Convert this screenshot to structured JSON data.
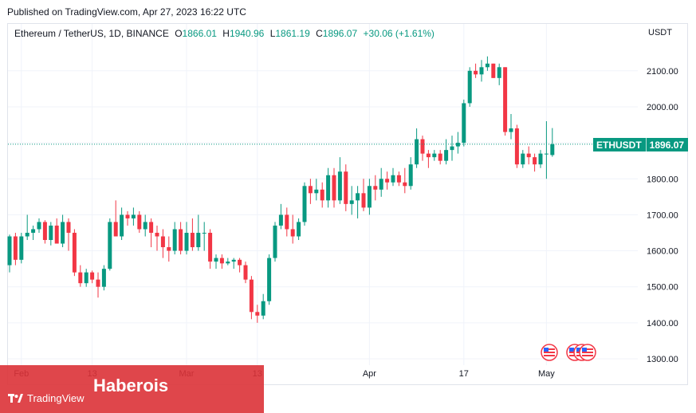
{
  "header": {
    "published": "Published on TradingView.com, Apr 27, 2023 16:22 UTC"
  },
  "legend": {
    "title": "Ethereum / TetherUS, 1D, BINANCE",
    "o_key": "O",
    "o_val": "1866.01",
    "h_key": "H",
    "h_val": "1940.96",
    "l_key": "L",
    "l_val": "1861.19",
    "c_key": "C",
    "c_val": "1896.07",
    "change": "+30.06 (+1.61%)"
  },
  "price_axis": {
    "currency": "USDT"
  },
  "last_price": {
    "symbol": "ETHUSDT",
    "value": "1896.07"
  },
  "watermark": {
    "text": "Haberois",
    "logo": "TradingView"
  },
  "colors": {
    "up": "#089981",
    "down": "#f23645",
    "grid": "#f0f3fa",
    "watermark": "#dc3237"
  },
  "icons": {
    "logo": "tradingview-logo-icon",
    "events": "us-flag-icon"
  },
  "chart_data": {
    "type": "candlestick",
    "title": "Ethereum / TetherUS, 1D, BINANCE",
    "ylim": [
      1280,
      2170
    ],
    "y_ticks": [
      1300,
      1400,
      1500,
      1600,
      1700,
      1800,
      1900,
      2000,
      2100
    ],
    "y_tick_labels": [
      "1300.00",
      "1400.00",
      "1500.00",
      "1600.00",
      "1700.00",
      "1800.00",
      "1900.00",
      "2000.00",
      "2100.00"
    ],
    "x_labels": [
      {
        "index": 2,
        "label": "Feb"
      },
      {
        "index": 14,
        "label": "13"
      },
      {
        "index": 30,
        "label": "Mar"
      },
      {
        "index": 42,
        "label": "13"
      },
      {
        "index": 61,
        "label": "Apr"
      },
      {
        "index": 77,
        "label": "17"
      },
      {
        "index": 91,
        "label": "May"
      }
    ],
    "last_close": 1896.07,
    "candles": [
      [
        1560,
        1645,
        1540,
        1640
      ],
      [
        1640,
        1650,
        1560,
        1575
      ],
      [
        1575,
        1650,
        1565,
        1640
      ],
      [
        1640,
        1700,
        1630,
        1650
      ],
      [
        1650,
        1670,
        1630,
        1660
      ],
      [
        1660,
        1690,
        1650,
        1680
      ],
      [
        1680,
        1685,
        1620,
        1630
      ],
      [
        1630,
        1680,
        1615,
        1670
      ],
      [
        1670,
        1690,
        1620,
        1620
      ],
      [
        1620,
        1700,
        1610,
        1680
      ],
      [
        1680,
        1690,
        1600,
        1650
      ],
      [
        1650,
        1660,
        1530,
        1540
      ],
      [
        1540,
        1560,
        1500,
        1510
      ],
      [
        1510,
        1550,
        1500,
        1540
      ],
      [
        1540,
        1545,
        1510,
        1520
      ],
      [
        1520,
        1540,
        1470,
        1500
      ],
      [
        1500,
        1560,
        1490,
        1550
      ],
      [
        1550,
        1690,
        1545,
        1680
      ],
      [
        1680,
        1740,
        1640,
        1640
      ],
      [
        1640,
        1720,
        1630,
        1700
      ],
      [
        1700,
        1710,
        1670,
        1690
      ],
      [
        1690,
        1720,
        1670,
        1700
      ],
      [
        1700,
        1710,
        1650,
        1660
      ],
      [
        1660,
        1700,
        1640,
        1680
      ],
      [
        1680,
        1690,
        1610,
        1650
      ],
      [
        1650,
        1670,
        1600,
        1640
      ],
      [
        1640,
        1660,
        1580,
        1610
      ],
      [
        1610,
        1640,
        1570,
        1600
      ],
      [
        1600,
        1680,
        1590,
        1660
      ],
      [
        1660,
        1680,
        1590,
        1600
      ],
      [
        1600,
        1680,
        1590,
        1650
      ],
      [
        1650,
        1690,
        1600,
        1610
      ],
      [
        1610,
        1700,
        1600,
        1650
      ],
      [
        1650,
        1680,
        1600,
        1650
      ],
      [
        1650,
        1660,
        1550,
        1570
      ],
      [
        1570,
        1590,
        1550,
        1580
      ],
      [
        1580,
        1590,
        1550,
        1565
      ],
      [
        1565,
        1580,
        1560,
        1570
      ],
      [
        1570,
        1580,
        1550,
        1575
      ],
      [
        1575,
        1580,
        1540,
        1560
      ],
      [
        1560,
        1570,
        1510,
        1520
      ],
      [
        1520,
        1530,
        1410,
        1430
      ],
      [
        1430,
        1450,
        1400,
        1420
      ],
      [
        1420,
        1480,
        1410,
        1460
      ],
      [
        1460,
        1590,
        1450,
        1580
      ],
      [
        1580,
        1680,
        1570,
        1670
      ],
      [
        1670,
        1730,
        1660,
        1700
      ],
      [
        1700,
        1720,
        1640,
        1660
      ],
      [
        1660,
        1700,
        1620,
        1640
      ],
      [
        1640,
        1690,
        1630,
        1680
      ],
      [
        1680,
        1790,
        1670,
        1780
      ],
      [
        1780,
        1800,
        1730,
        1760
      ],
      [
        1760,
        1800,
        1740,
        1770
      ],
      [
        1770,
        1790,
        1720,
        1740
      ],
      [
        1740,
        1830,
        1720,
        1810
      ],
      [
        1810,
        1830,
        1720,
        1740
      ],
      [
        1740,
        1860,
        1730,
        1820
      ],
      [
        1820,
        1840,
        1710,
        1730
      ],
      [
        1730,
        1780,
        1700,
        1740
      ],
      [
        1740,
        1780,
        1690,
        1760
      ],
      [
        1760,
        1800,
        1710,
        1720
      ],
      [
        1720,
        1800,
        1700,
        1780
      ],
      [
        1780,
        1810,
        1740,
        1770
      ],
      [
        1770,
        1830,
        1750,
        1800
      ],
      [
        1800,
        1820,
        1770,
        1790
      ],
      [
        1790,
        1830,
        1780,
        1810
      ],
      [
        1810,
        1820,
        1780,
        1790
      ],
      [
        1790,
        1830,
        1760,
        1780
      ],
      [
        1780,
        1860,
        1770,
        1840
      ],
      [
        1840,
        1940,
        1830,
        1910
      ],
      [
        1910,
        1920,
        1850,
        1870
      ],
      [
        1870,
        1880,
        1830,
        1860
      ],
      [
        1860,
        1880,
        1850,
        1870
      ],
      [
        1870,
        1880,
        1840,
        1850
      ],
      [
        1850,
        1910,
        1840,
        1880
      ],
      [
        1880,
        1920,
        1850,
        1890
      ],
      [
        1890,
        1930,
        1870,
        1900
      ],
      [
        1900,
        2020,
        1890,
        2010
      ],
      [
        2010,
        2110,
        2000,
        2100
      ],
      [
        2100,
        2120,
        2080,
        2090
      ],
      [
        2090,
        2130,
        2070,
        2110
      ],
      [
        2110,
        2140,
        2100,
        2120
      ],
      [
        2120,
        2120,
        2080,
        2080
      ],
      [
        2080,
        2120,
        2060,
        2110
      ],
      [
        2110,
        2110,
        1920,
        1930
      ],
      [
        1930,
        1980,
        1910,
        1940
      ],
      [
        1940,
        1950,
        1830,
        1840
      ],
      [
        1840,
        1880,
        1830,
        1870
      ],
      [
        1870,
        1890,
        1840,
        1860
      ],
      [
        1860,
        1870,
        1820,
        1840
      ],
      [
        1840,
        1880,
        1830,
        1870
      ],
      [
        1870,
        1960,
        1800,
        1870
      ],
      [
        1866.01,
        1940.96,
        1861.19,
        1896.07
      ]
    ]
  }
}
